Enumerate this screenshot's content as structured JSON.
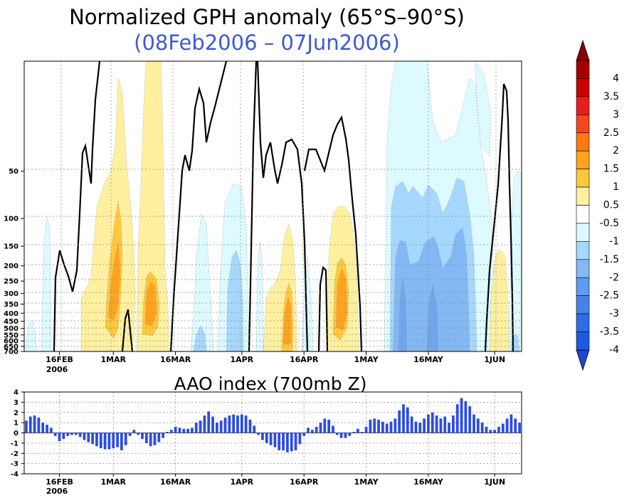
{
  "title": "Normalized GPH anomaly (65°S–90°S)",
  "subtitle": "(08Feb2006 – 07Jun2006)",
  "colors": {
    "title": "#000000",
    "subtitle": "#3c5ad8",
    "bar": "#2b4be6",
    "contour_line": "#000000",
    "grid": "#999999"
  },
  "chart_data": [
    {
      "type": "heatmap",
      "title": "Normalized GPH anomaly (65°S–90°S)",
      "subtitle": "(08Feb2006 – 07Jun2006)",
      "x_range": [
        "2006-02-08",
        "2006-06-07"
      ],
      "x_ticks": [
        "16FEB",
        "1MAR",
        "16MAR",
        "1APR",
        "16APR",
        "1MAY",
        "16MAY",
        "1JUN"
      ],
      "x_tick_dates": [
        "2006-02-16",
        "2006-03-01",
        "2006-03-16",
        "2006-04-01",
        "2006-04-16",
        "2006-05-01",
        "2006-05-16",
        "2006-06-01"
      ],
      "x_year_label": "2006",
      "y_ticks": [
        "50",
        "100",
        "150",
        "200",
        "250",
        "300",
        "350",
        "400",
        "450",
        "500",
        "550",
        "600",
        "650",
        "700"
      ],
      "y_tick_values": [
        50,
        100,
        150,
        200,
        250,
        300,
        350,
        400,
        450,
        500,
        550,
        600,
        650,
        700
      ],
      "y_range": [
        10,
        700
      ],
      "grid": true,
      "colorbar": {
        "labels": [
          "4",
          "3.5",
          "3",
          "2.5",
          "2",
          "1.5",
          "1",
          "0.5",
          "-0.5",
          "-1",
          "-1.5",
          "-2",
          "-2.5",
          "-3",
          "-3.5",
          "-4"
        ],
        "colors": [
          "#a50000",
          "#c80000",
          "#e61e1e",
          "#f5461e",
          "#ff7814",
          "#ffa31e",
          "#ffc83c",
          "#fff0a0",
          "#ffffff",
          "#dcfaff",
          "#a5d7ff",
          "#82b9f5",
          "#5f9bf0",
          "#4682eb",
          "#2d6ee6",
          "#1e5ae1"
        ],
        "top_arrow_color": "#8c0000",
        "bottom_arrow_color": "#1e46d2"
      }
    },
    {
      "type": "bar",
      "title": "AAO index (700mb Z)",
      "y_ticks": [
        "4",
        "3",
        "2",
        "1",
        "0",
        "-1",
        "-2",
        "-3",
        "-4"
      ],
      "ylim": [
        -4,
        4
      ],
      "x_ticks": [
        "16FEB",
        "1MAR",
        "16MAR",
        "1APR",
        "16APR",
        "1MAY",
        "16MAY",
        "1JUN"
      ],
      "x_year_label": "2006",
      "grid": true,
      "start_date": "2006-02-08",
      "values": [
        1.2,
        1.6,
        1.7,
        1.5,
        1.0,
        0.8,
        0.5,
        -0.3,
        -0.8,
        -0.6,
        -0.3,
        -0.2,
        -0.2,
        -0.4,
        -0.7,
        -0.9,
        -1.1,
        -1.3,
        -1.5,
        -1.6,
        -1.6,
        -1.5,
        -1.4,
        -1.7,
        -1.2,
        -0.3,
        0.3,
        -0.2,
        -0.6,
        -1.0,
        -1.3,
        -1.2,
        -0.9,
        -0.5,
        0.1,
        0.3,
        0.6,
        0.5,
        0.4,
        0.4,
        0.5,
        1.0,
        1.2,
        1.7,
        2.1,
        1.6,
        1.0,
        1.2,
        1.5,
        1.7,
        1.8,
        1.7,
        1.8,
        1.7,
        1.3,
        0.7,
        -0.2,
        -0.7,
        -1.0,
        -1.2,
        -1.4,
        -1.7,
        -1.7,
        -1.9,
        -1.8,
        -1.7,
        -1.1,
        -0.3,
        0.5,
        0.3,
        0.6,
        1.0,
        1.4,
        1.3,
        0.7,
        -0.2,
        -0.5,
        -0.5,
        -0.3,
        0.1,
        0.4,
        0.1,
        0.6,
        1.3,
        1.4,
        1.3,
        1.1,
        0.9,
        1.1,
        1.4,
        2.2,
        2.8,
        2.5,
        1.6,
        1.1,
        1.0,
        1.4,
        1.8,
        2.0,
        1.7,
        1.4,
        1.6,
        1.0,
        1.7,
        2.8,
        3.4,
        3.1,
        2.6,
        1.8,
        1.4,
        1.0,
        0.6,
        0.3,
        0.3,
        0.6,
        0.9,
        1.4,
        1.8,
        1.4,
        1.0
      ]
    }
  ]
}
